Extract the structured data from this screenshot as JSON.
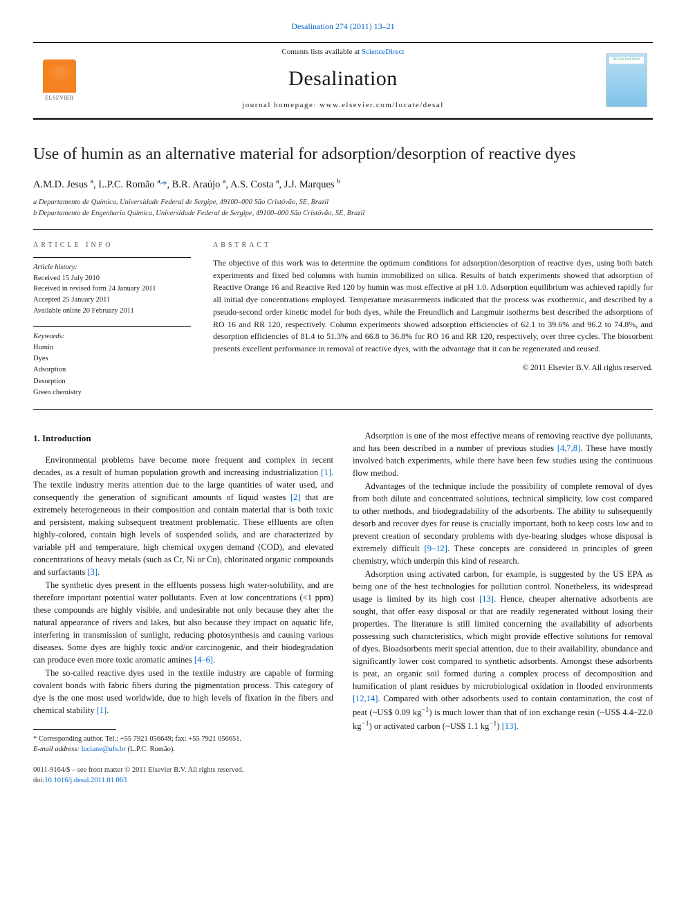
{
  "citation": "Desalination 274 (2011) 13–21",
  "masthead": {
    "contents_prefix": "Contents lists available at ",
    "contents_link": "ScienceDirect",
    "journal": "Desalination",
    "homepage_label": "journal homepage: www.elsevier.com/locate/desal",
    "publisher_name": "ELSEVIER",
    "cover_text": "DESALINATION"
  },
  "article": {
    "title": "Use of humin as an alternative material for adsorption/desorption of reactive dyes",
    "authors_html": "A.M.D. Jesus <sup>a</sup>, L.P.C. Romão <sup>a,</sup><a href='#'>*</a>, B.R. Araújo <sup>a</sup>, A.S. Costa <sup>a</sup>, J.J. Marques <sup>b</sup>",
    "affiliations": [
      "a  Departamento de Química, Universidade Federal de Sergipe, 49100–000 São Cristóvão, SE, Brazil",
      "b  Departamento de Engenharia Química, Universidade Federal de Sergipe, 49100–000 São Cristóvão, SE, Brazil"
    ]
  },
  "info": {
    "section_label": "ARTICLE INFO",
    "history_label": "Article history:",
    "history": [
      "Received 15 July 2010",
      "Received in revised form 24 January 2011",
      "Accepted 25 January 2011",
      "Available online 20 February 2011"
    ],
    "keywords_label": "Keywords:",
    "keywords": [
      "Humin",
      "Dyes",
      "Adsorption",
      "Desorption",
      "Green chemistry"
    ]
  },
  "abstract": {
    "section_label": "ABSTRACT",
    "body": "The objective of this work was to determine the optimum conditions for adsorption/desorption of reactive dyes, using both batch experiments and fixed bed columns with humin immobilized on silica. Results of batch experiments showed that adsorption of Reactive Orange 16 and Reactive Red 120 by humin was most effective at pH 1.0. Adsorption equilibrium was achieved rapidly for all initial dye concentrations employed. Temperature measurements indicated that the process was exothermic, and described by a pseudo-second order kinetic model for both dyes, while the Freundlich and Langmuir isotherms best described the adsorptions of RO 16 and RR 120, respectively. Column experiments showed adsorption efficiencies of 62.1 to 39.6% and 96.2 to 74.8%, and desorption efficiencies of 81.4 to 51.3% and 66.8 to 36.8% for RO 16 and RR 120, respectively, over three cycles. The biosorbent presents excellent performance in removal of reactive dyes, with the advantage that it can be regenerated and reused.",
    "copyright": "© 2011 Elsevier B.V. All rights reserved."
  },
  "body": {
    "heading": "1. Introduction",
    "paras": [
      "Environmental problems have become more frequent and complex in recent decades, as a result of human population growth and increasing industrialization <a class='ref' href='#'>[1]</a>. The textile industry merits attention due to the large quantities of water used, and consequently the generation of significant amounts of liquid wastes <a class='ref' href='#'>[2]</a> that are extremely heterogeneous in their composition and contain material that is both toxic and persistent, making subsequent treatment problematic. These effluents are often highly-colored, contain high levels of suspended solids, and are characterized by variable pH and temperature, high chemical oxygen demand (COD), and elevated concentrations of heavy metals (such as Cr, Ni or Cu), chlorinated organic compounds and surfactants <a class='ref' href='#'>[3]</a>.",
      "The synthetic dyes present in the effluents possess high water-solubility, and are therefore important potential water pollutants. Even at low concentrations (&lt;1 ppm) these compounds are highly visible, and undesirable not only because they alter the natural appearance of rivers and lakes, but also because they impact on aquatic life, interfering in transmission of sunlight, reducing photosynthesis and causing various diseases. Some dyes are highly toxic and/or carcinogenic, and their biodegradation can produce even more toxic aromatic amines <a class='ref' href='#'>[4–6]</a>.",
      "The so-called reactive dyes used in the textile industry are capable of forming covalent bonds with fabric fibers during the pigmentation process. This category of dye is the one most used worldwide, due to high levels of fixation in the fibers and chemical stability <a class='ref' href='#'>[1]</a>.",
      "Adsorption is one of the most effective means of removing reactive dye pollutants, and has been described in a number of previous studies <a class='ref' href='#'>[4,7,8]</a>. These have mostly involved batch experiments, while there have been few studies using the continuous flow method.",
      "Advantages of the technique include the possibility of complete removal of dyes from both dilute and concentrated solutions, technical simplicity, low cost compared to other methods, and biodegradability of the adsorbents. The ability to subsequently desorb and recover dyes for reuse is crucially important, both to keep costs low and to prevent creation of secondary problems with dye-bearing sludges whose disposal is extremely difficult <a class='ref' href='#'>[9–12]</a>. These concepts are considered in principles of green chemistry, which underpin this kind of research.",
      "Adsorption using activated carbon, for example, is suggested by the US EPA as being one of the best technologies for pollution control. Nonetheless, its widespread usage is limited by its high cost <a class='ref' href='#'>[13]</a>. Hence, cheaper alternative adsorbents are sought, that offer easy disposal or that are readily regenerated without losing their properties. The literature is still limited concerning the availability of adsorbents possessing such characteristics, which might provide effective solutions for removal of dyes. Bioadsorbents merit special attention, due to their availability, abundance and significantly lower cost compared to synthetic adsorbents. Amongst these adsorbents is peat, an organic soil formed during a complex process of decomposition and humification of plant residues by microbiological oxidation in flooded environments <a class='ref' href='#'>[12,14]</a>. Compared with other adsorbents used to contain contamination, the cost of peat (~US$ 0.09 kg<sup>−1</sup>) is much lower than that of ion exchange resin (~US$ 4.4–22.0 kg<sup>−1</sup>) or activated carbon (~US$ 1.1 kg<sup>−1</sup>) <a class='ref' href='#'>[13]</a>."
    ]
  },
  "footnotes": {
    "corresponding": "* Corresponding author. Tel.: +55 7921 056649; fax: +55 7921 056651.",
    "email_label": "E-mail address:",
    "email": "luciane@ufs.br",
    "email_who": "(L.P.C. Romão)."
  },
  "footer": {
    "issn_line": "0011-9164/$ – see front matter © 2011 Elsevier B.V. All rights reserved.",
    "doi_prefix": "doi:",
    "doi": "10.1016/j.desal.2011.01.063"
  },
  "colors": {
    "link": "#0066cc",
    "elsevier_orange": "#f58220",
    "cover_grad_top": "#b8dff5",
    "cover_grad_bot": "#7ec4e8"
  }
}
